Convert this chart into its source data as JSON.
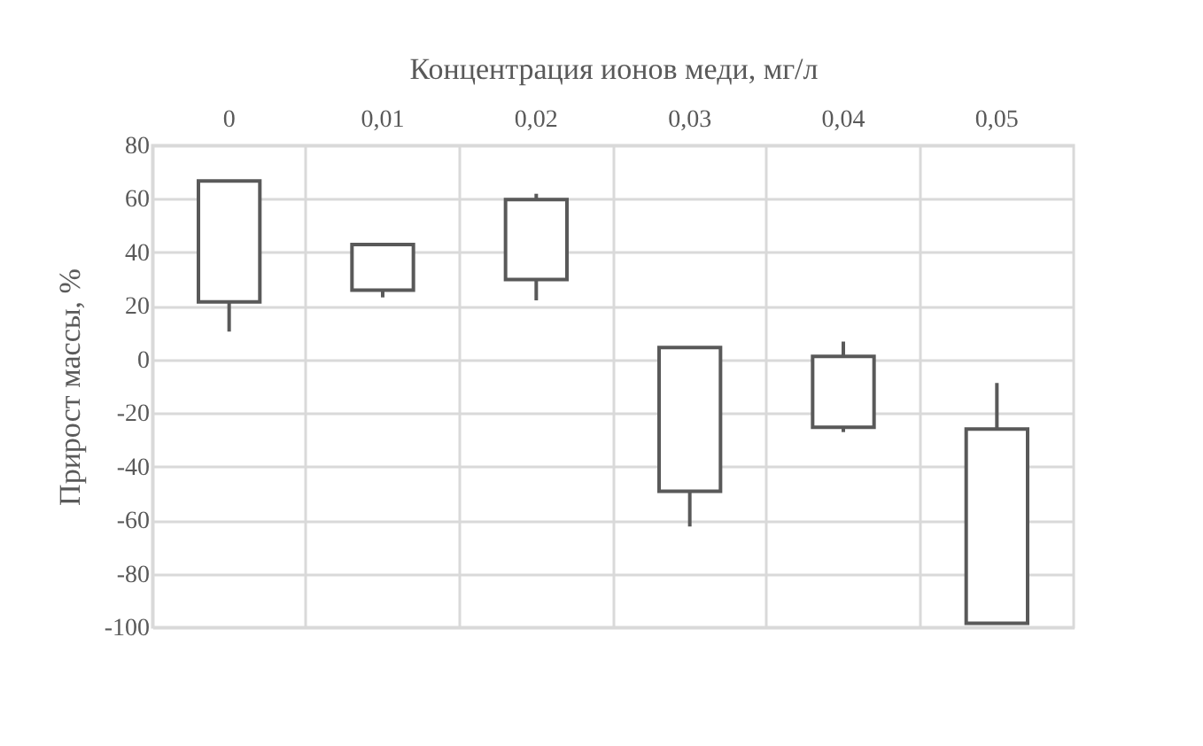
{
  "chart_data": {
    "type": "candlestick",
    "xlabel": "Концентрация ионов меди, мг/л",
    "ylabel": "Прирост массы, %",
    "categories": [
      "0",
      "0,01",
      "0,02",
      "0,03",
      "0,04",
      "0,05"
    ],
    "ohlc": [
      [
        21.5,
        66.7,
        10.4,
        66.7
      ],
      [
        25.9,
        42.9,
        23.2,
        42.9
      ],
      [
        29.9,
        61.9,
        22.1,
        59.7
      ],
      [
        -49.2,
        4.5,
        -62.4,
        4.5
      ],
      [
        -25.3,
        6.7,
        -27.1,
        1.2
      ],
      [
        -98.5,
        -8.8,
        -98.5,
        -26.0
      ]
    ],
    "ylim": [
      -100,
      80
    ],
    "yticks": [
      -100,
      -80,
      -60,
      -40,
      -20,
      0,
      20,
      40,
      60,
      80
    ],
    "grid": true
  }
}
